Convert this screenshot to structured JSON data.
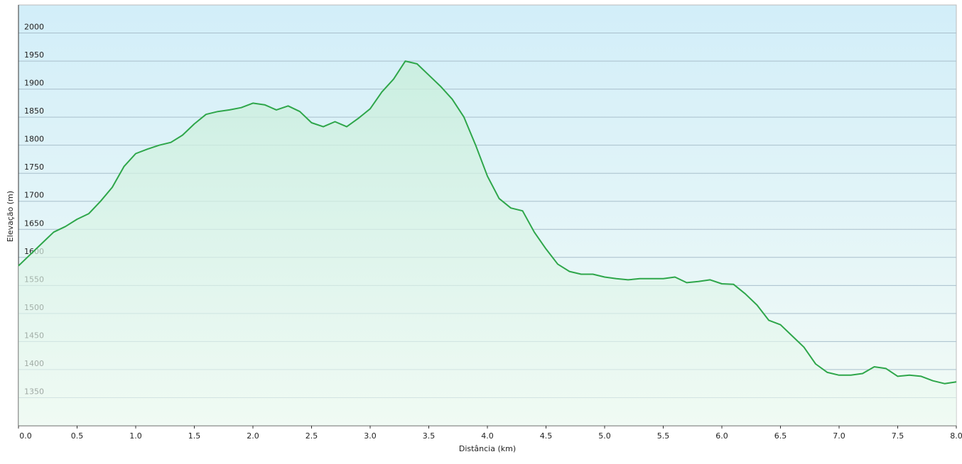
{
  "chart_data": {
    "type": "area",
    "x_label": "Distância (km)",
    "y_label": "Elevação (m)",
    "xlim": [
      0,
      8
    ],
    "ylim": [
      1300,
      2050
    ],
    "xticks": [
      {
        "value": 0,
        "label": "0.0"
      },
      {
        "value": 0.5,
        "label": "0.5"
      },
      {
        "value": 1,
        "label": "1.0"
      },
      {
        "value": 1.5,
        "label": "1.5"
      },
      {
        "value": 2,
        "label": "2.0"
      },
      {
        "value": 2.5,
        "label": "2.5"
      },
      {
        "value": 3,
        "label": "3.0"
      },
      {
        "value": 3.5,
        "label": "3.5"
      },
      {
        "value": 4,
        "label": "4.0"
      },
      {
        "value": 4.5,
        "label": "4.5"
      },
      {
        "value": 5,
        "label": "5.0"
      },
      {
        "value": 5.5,
        "label": "5.5"
      },
      {
        "value": 6,
        "label": "6.0"
      },
      {
        "value": 6.5,
        "label": "6.5"
      },
      {
        "value": 7,
        "label": "7.0"
      },
      {
        "value": 7.5,
        "label": "7.5"
      },
      {
        "value": 8,
        "label": "8.0"
      }
    ],
    "yticks": [
      1350,
      1400,
      1450,
      1500,
      1550,
      1600,
      1650,
      1700,
      1750,
      1800,
      1850,
      1900,
      1950,
      2000
    ],
    "grid": true,
    "color": "#2ea64a",
    "x": [
      0,
      0.1,
      0.2,
      0.3,
      0.4,
      0.5,
      0.6,
      0.7,
      0.8,
      0.9,
      1,
      1.1,
      1.2,
      1.3,
      1.4,
      1.5,
      1.6,
      1.7,
      1.8,
      1.9,
      2,
      2.1,
      2.2,
      2.3,
      2.4,
      2.5,
      2.6,
      2.7,
      2.8,
      2.9,
      3,
      3.1,
      3.2,
      3.3,
      3.4,
      3.5,
      3.6,
      3.7,
      3.8,
      3.9,
      4,
      4.1,
      4.2,
      4.3,
      4.4,
      4.5,
      4.6,
      4.7,
      4.8,
      4.9,
      5,
      5.1,
      5.2,
      5.3,
      5.4,
      5.5,
      5.6,
      5.7,
      5.8,
      5.9,
      6,
      6.1,
      6.2,
      6.3,
      6.4,
      6.5,
      6.6,
      6.7,
      6.8,
      6.9,
      7,
      7.1,
      7.2,
      7.3,
      7.4,
      7.5,
      7.6,
      7.7,
      7.8,
      7.9,
      8
    ],
    "values": [
      1585,
      1605,
      1625,
      1645,
      1655,
      1668,
      1678,
      1700,
      1725,
      1762,
      1785,
      1793,
      1800,
      1805,
      1818,
      1838,
      1855,
      1860,
      1863,
      1867,
      1875,
      1872,
      1863,
      1870,
      1860,
      1840,
      1833,
      1842,
      1833,
      1848,
      1865,
      1895,
      1918,
      1950,
      1945,
      1925,
      1905,
      1882,
      1850,
      1800,
      1745,
      1705,
      1688,
      1683,
      1645,
      1615,
      1588,
      1575,
      1570,
      1570,
      1565,
      1562,
      1560,
      1562,
      1562,
      1562,
      1565,
      1555,
      1557,
      1560,
      1553,
      1552,
      1535,
      1515,
      1488,
      1480,
      1460,
      1440,
      1410,
      1395,
      1390,
      1390,
      1393,
      1405,
      1402,
      1388,
      1390,
      1388,
      1380,
      1375,
      1378
    ]
  }
}
